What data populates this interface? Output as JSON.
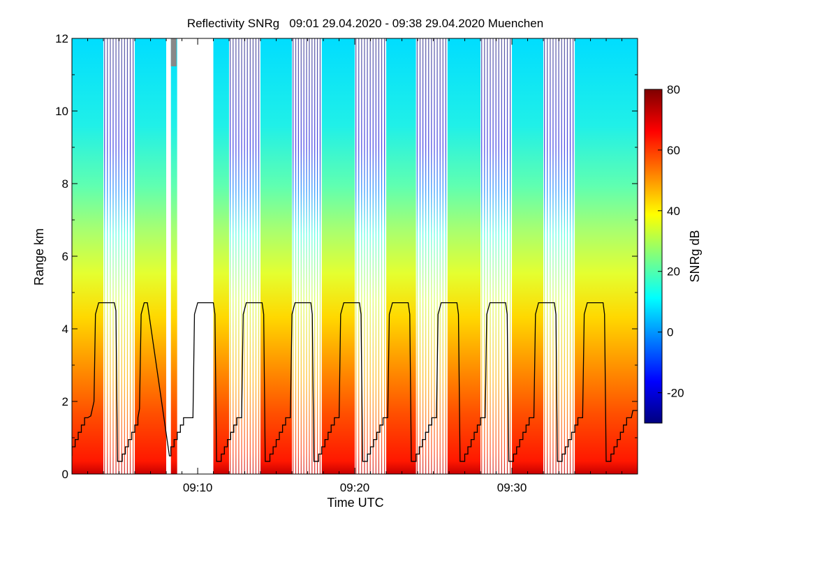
{
  "chart_data": {
    "type": "heatmap",
    "title": "Reflectivity SNRg   09:01 29.04.2020 - 09:38 29.04.2020 Muenchen",
    "xlabel": "Time UTC",
    "ylabel": "Range km",
    "colorbar_label": "SNRg dB",
    "xlim": [
      9.0333,
      9.6333
    ],
    "ylim": [
      0,
      12
    ],
    "x_ticks": [
      {
        "label": "09:10",
        "value": 9.1667
      },
      {
        "label": "09:20",
        "value": 9.3333
      },
      {
        "label": "09:30",
        "value": 9.5
      }
    ],
    "y_ticks": [
      "0",
      "2",
      "4",
      "6",
      "8",
      "10",
      "12"
    ],
    "colorbar_range": [
      -30,
      80
    ],
    "colorbar_ticks": [
      "-20",
      "0",
      "20",
      "40",
      "60",
      "80"
    ],
    "colormap": [
      "#00007f",
      "#0000ff",
      "#007fff",
      "#00ffff",
      "#7fff7f",
      "#ffff00",
      "#ff7f00",
      "#ff0000",
      "#7f0000"
    ],
    "colors": {
      "missing_data": "#888888",
      "trace": "#000000"
    },
    "scan_blocks": [
      {
        "type": "vertical",
        "t_start": 9.0333,
        "t_end": 9.0667
      },
      {
        "type": "rhi",
        "t_start": 9.0667,
        "t_end": 9.1
      },
      {
        "type": "vertical",
        "t_start": 9.1,
        "t_end": 9.1333
      },
      {
        "type": "gap",
        "t_start": 9.1333,
        "t_end": 9.1383
      },
      {
        "type": "vertical",
        "t_start": 9.1383,
        "t_end": 9.145
      },
      {
        "type": "gap",
        "t_start": 9.145,
        "t_end": 9.1833
      },
      {
        "type": "vertical",
        "t_start": 9.1833,
        "t_end": 9.2
      },
      {
        "type": "rhi",
        "t_start": 9.2,
        "t_end": 9.2333
      },
      {
        "type": "vertical",
        "t_start": 9.2333,
        "t_end": 9.2667
      },
      {
        "type": "rhi",
        "t_start": 9.2667,
        "t_end": 9.2983
      },
      {
        "type": "vertical",
        "t_start": 9.2983,
        "t_end": 9.3333
      },
      {
        "type": "rhi",
        "t_start": 9.3333,
        "t_end": 9.3667
      },
      {
        "type": "vertical",
        "t_start": 9.3667,
        "t_end": 9.3983
      },
      {
        "type": "rhi",
        "t_start": 9.3983,
        "t_end": 9.4317
      },
      {
        "type": "vertical",
        "t_start": 9.4317,
        "t_end": 9.4667
      },
      {
        "type": "rhi",
        "t_start": 9.4667,
        "t_end": 9.5
      },
      {
        "type": "vertical",
        "t_start": 9.5,
        "t_end": 9.5333
      },
      {
        "type": "rhi",
        "t_start": 9.5333,
        "t_end": 9.5667
      },
      {
        "type": "vertical",
        "t_start": 9.5667,
        "t_end": 9.6333
      }
    ],
    "series": [
      {
        "type": "line",
        "points": [
          [
            9.0333,
            0.5
          ],
          [
            9.0333,
            0.75
          ],
          [
            9.0367,
            0.75
          ],
          [
            9.0367,
            0.95
          ],
          [
            9.04,
            0.95
          ],
          [
            9.04,
            1.15
          ],
          [
            9.0433,
            1.15
          ],
          [
            9.0433,
            1.35
          ],
          [
            9.0467,
            1.35
          ],
          [
            9.0467,
            1.55
          ],
          [
            9.05,
            1.55
          ],
          [
            9.05,
            1.55
          ],
          [
            9.0533,
            1.6
          ],
          [
            9.0567,
            2.0
          ],
          [
            9.0583,
            4.4
          ],
          [
            9.0617,
            4.72
          ],
          [
            9.0783,
            4.72
          ],
          [
            9.08,
            4.5
          ],
          [
            9.0817,
            0.35
          ],
          [
            9.0867,
            0.35
          ],
          [
            9.0867,
            0.55
          ],
          [
            9.09,
            0.55
          ],
          [
            9.09,
            0.75
          ],
          [
            9.0933,
            0.75
          ],
          [
            9.0933,
            0.95
          ],
          [
            9.0967,
            0.95
          ],
          [
            9.0967,
            1.15
          ],
          [
            9.1,
            1.15
          ],
          [
            9.1,
            1.35
          ],
          [
            9.1033,
            1.35
          ],
          [
            9.1033,
            1.55
          ],
          [
            9.105,
            1.8
          ],
          [
            9.1067,
            4.4
          ],
          [
            9.11,
            4.72
          ],
          [
            9.1133,
            4.72
          ],
          [
            9.1367,
            0.5
          ],
          [
            9.1383,
            0.5
          ],
          [
            9.1383,
            0.75
          ],
          [
            9.1417,
            0.75
          ],
          [
            9.1417,
            0.95
          ],
          [
            9.145,
            0.95
          ],
          [
            9.145,
            1.15
          ],
          [
            9.1483,
            1.15
          ],
          [
            9.1483,
            1.35
          ],
          [
            9.1517,
            1.35
          ],
          [
            9.1517,
            1.55
          ],
          [
            9.1617,
            1.55
          ],
          [
            9.1633,
            4.4
          ],
          [
            9.1667,
            4.72
          ],
          [
            9.1833,
            4.72
          ],
          [
            9.185,
            4.4
          ],
          [
            9.1867,
            0.35
          ],
          [
            9.1917,
            0.35
          ],
          [
            9.1917,
            0.55
          ],
          [
            9.195,
            0.55
          ],
          [
            9.195,
            0.75
          ],
          [
            9.1983,
            0.75
          ],
          [
            9.1983,
            0.95
          ],
          [
            9.2017,
            0.95
          ],
          [
            9.2017,
            1.15
          ],
          [
            9.205,
            1.15
          ],
          [
            9.205,
            1.35
          ],
          [
            9.2083,
            1.35
          ],
          [
            9.2083,
            1.55
          ],
          [
            9.2133,
            1.55
          ],
          [
            9.215,
            4.4
          ],
          [
            9.2183,
            4.72
          ],
          [
            9.235,
            4.72
          ],
          [
            9.2367,
            4.4
          ],
          [
            9.2383,
            0.35
          ],
          [
            9.2433,
            0.35
          ],
          [
            9.2433,
            0.55
          ],
          [
            9.2467,
            0.55
          ],
          [
            9.2467,
            0.75
          ],
          [
            9.25,
            0.75
          ],
          [
            9.25,
            0.95
          ],
          [
            9.2533,
            0.95
          ],
          [
            9.2533,
            1.15
          ],
          [
            9.2567,
            1.15
          ],
          [
            9.2567,
            1.35
          ],
          [
            9.26,
            1.35
          ],
          [
            9.26,
            1.55
          ],
          [
            9.265,
            1.55
          ],
          [
            9.2667,
            4.4
          ],
          [
            9.27,
            4.72
          ],
          [
            9.2867,
            4.72
          ],
          [
            9.2883,
            4.4
          ],
          [
            9.29,
            0.35
          ],
          [
            9.295,
            0.35
          ],
          [
            9.295,
            0.55
          ],
          [
            9.2983,
            0.55
          ],
          [
            9.2983,
            0.75
          ],
          [
            9.3017,
            0.75
          ],
          [
            9.3017,
            0.95
          ],
          [
            9.305,
            0.95
          ],
          [
            9.305,
            1.15
          ],
          [
            9.3083,
            1.15
          ],
          [
            9.3083,
            1.35
          ],
          [
            9.3117,
            1.35
          ],
          [
            9.3117,
            1.55
          ],
          [
            9.3167,
            1.55
          ],
          [
            9.3183,
            4.4
          ],
          [
            9.3217,
            4.72
          ],
          [
            9.3383,
            4.72
          ],
          [
            9.34,
            4.4
          ],
          [
            9.3417,
            0.35
          ],
          [
            9.3467,
            0.35
          ],
          [
            9.3467,
            0.55
          ],
          [
            9.35,
            0.55
          ],
          [
            9.35,
            0.75
          ],
          [
            9.3533,
            0.75
          ],
          [
            9.3533,
            0.95
          ],
          [
            9.3567,
            0.95
          ],
          [
            9.3567,
            1.15
          ],
          [
            9.36,
            1.15
          ],
          [
            9.36,
            1.35
          ],
          [
            9.3633,
            1.35
          ],
          [
            9.3633,
            1.55
          ],
          [
            9.3683,
            1.55
          ],
          [
            9.37,
            4.4
          ],
          [
            9.3733,
            4.72
          ],
          [
            9.39,
            4.72
          ],
          [
            9.3917,
            4.4
          ],
          [
            9.3933,
            0.35
          ],
          [
            9.3983,
            0.35
          ],
          [
            9.3983,
            0.55
          ],
          [
            9.4017,
            0.55
          ],
          [
            9.4017,
            0.75
          ],
          [
            9.405,
            0.75
          ],
          [
            9.405,
            0.95
          ],
          [
            9.4083,
            0.95
          ],
          [
            9.4083,
            1.15
          ],
          [
            9.4117,
            1.15
          ],
          [
            9.4117,
            1.35
          ],
          [
            9.415,
            1.35
          ],
          [
            9.415,
            1.55
          ],
          [
            9.42,
            1.55
          ],
          [
            9.4217,
            4.4
          ],
          [
            9.425,
            4.72
          ],
          [
            9.4417,
            4.72
          ],
          [
            9.4433,
            4.4
          ],
          [
            9.445,
            0.35
          ],
          [
            9.45,
            0.35
          ],
          [
            9.45,
            0.55
          ],
          [
            9.4533,
            0.55
          ],
          [
            9.4533,
            0.75
          ],
          [
            9.4567,
            0.75
          ],
          [
            9.4567,
            0.95
          ],
          [
            9.46,
            0.95
          ],
          [
            9.46,
            1.15
          ],
          [
            9.4633,
            1.15
          ],
          [
            9.4633,
            1.35
          ],
          [
            9.4667,
            1.35
          ],
          [
            9.4667,
            1.55
          ],
          [
            9.4717,
            1.55
          ],
          [
            9.4733,
            4.4
          ],
          [
            9.4767,
            4.72
          ],
          [
            9.4933,
            4.72
          ],
          [
            9.495,
            4.4
          ],
          [
            9.4967,
            0.35
          ],
          [
            9.5017,
            0.35
          ],
          [
            9.5017,
            0.55
          ],
          [
            9.505,
            0.55
          ],
          [
            9.505,
            0.75
          ],
          [
            9.5083,
            0.75
          ],
          [
            9.5083,
            0.95
          ],
          [
            9.5117,
            0.95
          ],
          [
            9.5117,
            1.15
          ],
          [
            9.515,
            1.15
          ],
          [
            9.515,
            1.35
          ],
          [
            9.5183,
            1.35
          ],
          [
            9.5183,
            1.55
          ],
          [
            9.5233,
            1.55
          ],
          [
            9.525,
            4.4
          ],
          [
            9.5283,
            4.72
          ],
          [
            9.545,
            4.72
          ],
          [
            9.5467,
            4.4
          ],
          [
            9.5483,
            0.35
          ],
          [
            9.5533,
            0.35
          ],
          [
            9.5533,
            0.55
          ],
          [
            9.5567,
            0.55
          ],
          [
            9.5567,
            0.75
          ],
          [
            9.56,
            0.75
          ],
          [
            9.56,
            0.95
          ],
          [
            9.5633,
            0.95
          ],
          [
            9.5633,
            1.15
          ],
          [
            9.5667,
            1.15
          ],
          [
            9.5667,
            1.35
          ],
          [
            9.57,
            1.35
          ],
          [
            9.57,
            1.55
          ],
          [
            9.575,
            1.55
          ],
          [
            9.5767,
            4.4
          ],
          [
            9.58,
            4.72
          ],
          [
            9.5967,
            4.72
          ],
          [
            9.5983,
            4.4
          ],
          [
            9.6,
            0.35
          ],
          [
            9.605,
            0.35
          ],
          [
            9.605,
            0.55
          ],
          [
            9.6083,
            0.55
          ],
          [
            9.6083,
            0.75
          ],
          [
            9.6117,
            0.75
          ],
          [
            9.6117,
            0.95
          ],
          [
            9.615,
            0.95
          ],
          [
            9.615,
            1.15
          ],
          [
            9.6183,
            1.15
          ],
          [
            9.6183,
            1.35
          ],
          [
            9.6217,
            1.35
          ],
          [
            9.6217,
            1.55
          ],
          [
            9.6267,
            1.55
          ],
          [
            9.6283,
            1.75
          ],
          [
            9.6333,
            1.75
          ]
        ]
      }
    ]
  }
}
